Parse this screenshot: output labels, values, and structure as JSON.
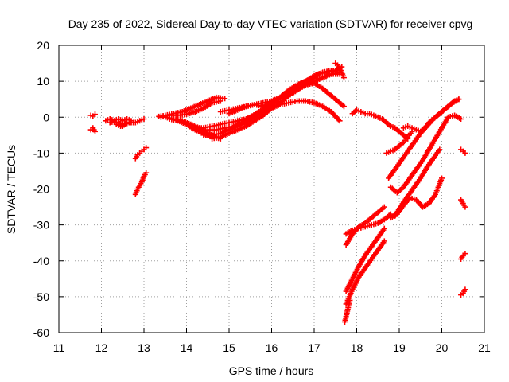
{
  "chart_data": {
    "type": "scatter",
    "title": "Day 235 of 2022, Sidereal Day-to-day VTEC variation (SDTVAR) for receiver cpvg",
    "xlabel": "GPS time / hours",
    "ylabel": "SDTVAR / TECUs",
    "xlim": [
      11,
      21
    ],
    "ylim": [
      -60,
      20
    ],
    "xticks": [
      "11",
      "12",
      "13",
      "14",
      "15",
      "16",
      "17",
      "18",
      "19",
      "20",
      "21"
    ],
    "yticks": [
      "-60",
      "-50",
      "-40",
      "-30",
      "-20",
      "-10",
      "0",
      "10",
      "20"
    ],
    "grid": true,
    "marker": "+",
    "color": "#ff0000",
    "series": [
      {
        "name": "s1",
        "x": [
          11.75,
          11.8,
          11.85
        ],
        "y": [
          0.5,
          0.3,
          0.8
        ]
      },
      {
        "name": "s2",
        "x": [
          11.75,
          11.8,
          11.85
        ],
        "y": [
          -3.5,
          -3,
          -4
        ]
      },
      {
        "name": "s3",
        "x": [
          12.1,
          12.2,
          12.3,
          12.4,
          12.5,
          12.6,
          12.7
        ],
        "y": [
          -1,
          -0.5,
          -1,
          -0.5,
          -1,
          -0.5,
          -1
        ]
      },
      {
        "name": "s4",
        "x": [
          12.2,
          12.3,
          12.4,
          12.5,
          12.6,
          12.7,
          12.8,
          12.9,
          13.0
        ],
        "y": [
          -1.5,
          -1.2,
          -1.5,
          -2.5,
          -1.5,
          -1.5,
          -1.5,
          -1,
          -0.5
        ]
      },
      {
        "name": "s5",
        "x": [
          12.35,
          12.45,
          12.55,
          12.65,
          12.75
        ],
        "y": [
          -2,
          -2.5,
          -2,
          -1.5,
          -1.5
        ]
      },
      {
        "name": "s6",
        "x": [
          12.8,
          12.85,
          12.9,
          12.95,
          13.0,
          13.05
        ],
        "y": [
          -11.5,
          -10.5,
          -10,
          -9.5,
          -9,
          -8.5
        ]
      },
      {
        "name": "s7",
        "x": [
          12.8,
          12.85,
          12.9,
          12.95,
          13.0,
          13.05
        ],
        "y": [
          -21.5,
          -20,
          -19,
          -18,
          -16.5,
          -15.5
        ]
      },
      {
        "name": "s8",
        "x": [
          13.35,
          13.5,
          13.7,
          13.9,
          14.1,
          14.3,
          14.5,
          14.7,
          14.9
        ],
        "y": [
          0.2,
          0.5,
          1,
          1.5,
          2.5,
          3.5,
          4.5,
          5.5,
          5.2
        ]
      },
      {
        "name": "s9",
        "x": [
          13.4,
          13.6,
          13.8,
          14.0,
          14.2,
          14.4,
          14.6,
          14.8
        ],
        "y": [
          0,
          0.5,
          0.5,
          0.8,
          1.5,
          2.5,
          4,
          4.5
        ]
      },
      {
        "name": "s10",
        "x": [
          13.5,
          13.7,
          13.9,
          14.1,
          14.3,
          14.5,
          14.7
        ],
        "y": [
          0,
          -0.5,
          -1,
          -2,
          -3,
          -4.5,
          -5.5
        ]
      },
      {
        "name": "s11",
        "x": [
          13.6,
          13.8,
          14.0,
          14.2,
          14.4,
          14.6,
          14.8
        ],
        "y": [
          -0.5,
          -1,
          -2,
          -3.5,
          -4.5,
          -5.5,
          -6
        ]
      },
      {
        "name": "s12",
        "x": [
          14.3,
          14.5,
          14.7,
          14.9,
          15.1,
          15.3,
          15.5,
          15.7,
          15.9,
          16.1,
          16.3,
          16.5,
          16.7,
          16.9,
          17.1,
          17.3,
          17.5,
          17.65
        ],
        "y": [
          -4,
          -3.5,
          -3.5,
          -3,
          -2.5,
          -1.5,
          0,
          1.5,
          3,
          4.5,
          6.5,
          8,
          9.5,
          10.5,
          12,
          12.5,
          13,
          14
        ]
      },
      {
        "name": "s13",
        "x": [
          14.4,
          14.6,
          14.8,
          15.0,
          15.2,
          15.4,
          15.6,
          15.8,
          16.0,
          16.2,
          16.4,
          16.6,
          16.8,
          17.0,
          17.2,
          17.4,
          17.6
        ],
        "y": [
          -5,
          -5,
          -4.5,
          -3.5,
          -2.5,
          -1.5,
          0,
          1.5,
          3.5,
          5.5,
          7,
          8.5,
          9.5,
          10,
          11,
          12,
          12.5
        ]
      },
      {
        "name": "s14",
        "x": [
          14.6,
          14.8,
          15.0,
          15.2,
          15.4,
          15.6,
          15.8,
          16.0,
          16.2,
          16.4,
          16.6,
          16.8,
          17.0,
          17.2,
          17.4,
          17.6
        ],
        "y": [
          -6,
          -5.5,
          -4.5,
          -3.5,
          -2.5,
          -1,
          0.5,
          2.5,
          4,
          6,
          7.5,
          9,
          10,
          11,
          12,
          12
        ]
      },
      {
        "name": "s15",
        "x": [
          14.2,
          14.4,
          14.6,
          14.8,
          15.0,
          15.2,
          15.4,
          15.6,
          15.8,
          16.0,
          16.2,
          16.4,
          16.6,
          16.8,
          17.0,
          17.2,
          17.4,
          17.6
        ],
        "y": [
          -3,
          -3,
          -2.5,
          -2,
          -1.5,
          -1,
          -0.5,
          0.5,
          1.5,
          2.5,
          3.5,
          4,
          4.5,
          4.5,
          4,
          3,
          1.5,
          -1
        ]
      },
      {
        "name": "s16",
        "x": [
          14.8,
          15.0,
          15.2,
          15.4,
          15.6,
          15.8,
          16.0,
          16.2,
          16.4,
          16.6,
          16.8,
          17.0,
          17.2,
          17.4,
          17.6,
          17.7
        ],
        "y": [
          1.5,
          2,
          2.5,
          3,
          3.5,
          4,
          4.5,
          5.5,
          7,
          8,
          9,
          9.5,
          8,
          6,
          4,
          3
        ]
      },
      {
        "name": "s17",
        "x": [
          15.0,
          15.2,
          15.4,
          15.6,
          15.8,
          16.0,
          16.2,
          16.4,
          16.6,
          16.8,
          17.0,
          17.2,
          17.4,
          17.6
        ],
        "y": [
          1,
          2,
          3,
          3.5,
          3,
          4,
          5.5,
          7.5,
          9,
          10,
          11.5,
          12.5,
          13,
          13
        ]
      },
      {
        "name": "s18",
        "x": [
          17.5,
          17.55,
          17.6,
          17.65,
          17.7
        ],
        "y": [
          15,
          14.5,
          13.5,
          12.5,
          11
        ]
      },
      {
        "name": "s19",
        "x": [
          17.9,
          18.0,
          18.1,
          18.2,
          18.3,
          18.4,
          18.5,
          18.6,
          18.7,
          18.8,
          18.9,
          19.0,
          19.1,
          19.2
        ],
        "y": [
          1,
          2,
          1.5,
          1,
          1,
          0.5,
          0,
          -0.5,
          -1.5,
          -2.5,
          -3,
          -4,
          -5,
          -6
        ]
      },
      {
        "name": "s20",
        "x": [
          18.7,
          18.8,
          18.9,
          19.0,
          19.1,
          19.2,
          19.3
        ],
        "y": [
          -10,
          -9.5,
          -9,
          -8,
          -7,
          -5.5,
          -4
        ]
      },
      {
        "name": "s21",
        "x": [
          19.1,
          19.2,
          19.3,
          19.4,
          19.5,
          19.6,
          19.7,
          19.8,
          19.9,
          20.0,
          20.1,
          20.2,
          20.3,
          20.4
        ],
        "y": [
          -3,
          -2.5,
          -3,
          -3.5,
          -4,
          -3,
          -1.5,
          -0.5,
          0.5,
          1.5,
          2.5,
          3.5,
          4.5,
          5
        ]
      },
      {
        "name": "s22",
        "x": [
          18.75,
          18.9,
          19.05,
          19.2,
          19.35,
          19.5,
          19.65,
          19.8,
          19.95,
          20.1,
          20.25,
          20.4
        ],
        "y": [
          -17,
          -14.5,
          -12,
          -9.5,
          -7,
          -4.5,
          -2.5,
          -0.5,
          1,
          2.5,
          4,
          5
        ]
      },
      {
        "name": "s23",
        "x": [
          18.8,
          18.95,
          19.1,
          19.25,
          19.4,
          19.55,
          19.7,
          19.85,
          20.0,
          20.15,
          20.3,
          20.45
        ],
        "y": [
          -19.5,
          -21,
          -19.5,
          -17,
          -14.5,
          -12,
          -9,
          -6,
          -3,
          0,
          0.5,
          -0.5
        ]
      },
      {
        "name": "s24",
        "x": [
          18.8,
          18.95,
          19.1,
          19.25,
          19.4,
          19.55,
          19.7,
          19.85,
          20.0
        ],
        "y": [
          -28,
          -27,
          -24.5,
          -22.5,
          -23,
          -25,
          -24,
          -21.5,
          -17
        ]
      },
      {
        "name": "s25",
        "x": [
          18.9,
          19.05,
          19.2,
          19.35,
          19.5,
          19.65,
          19.8,
          19.95
        ],
        "y": [
          -27.5,
          -24.5,
          -22,
          -19.5,
          -17,
          -14,
          -11.5,
          -9
        ]
      },
      {
        "name": "s26",
        "x": [
          17.75,
          17.9,
          18.05,
          18.2,
          18.35,
          18.5,
          18.65,
          18.8
        ],
        "y": [
          -32.5,
          -31.5,
          -31,
          -30.5,
          -30,
          -29.5,
          -28.5,
          -27
        ]
      },
      {
        "name": "s27",
        "x": [
          17.75,
          17.9,
          18.05,
          18.2,
          18.35,
          18.5,
          18.65
        ],
        "y": [
          -35.5,
          -32.5,
          -30.5,
          -29.5,
          -28,
          -26.5,
          -25
        ]
      },
      {
        "name": "s28",
        "x": [
          17.75,
          17.9,
          18.05,
          18.2,
          18.35,
          18.5,
          18.65
        ],
        "y": [
          -48.5,
          -45,
          -41.5,
          -38.5,
          -36,
          -33.5,
          -31
        ]
      },
      {
        "name": "s29",
        "x": [
          17.75,
          17.9,
          18.05,
          18.2,
          18.35,
          18.5,
          18.65
        ],
        "y": [
          -52,
          -48,
          -44.5,
          -42,
          -39.5,
          -37,
          -34.5
        ]
      },
      {
        "name": "s30",
        "x": [
          17.72,
          17.76,
          17.8,
          17.84
        ],
        "y": [
          -57,
          -55,
          -53,
          -51
        ]
      },
      {
        "name": "s31",
        "x": [
          20.45,
          20.5,
          20.55
        ],
        "y": [
          -9,
          -9.5,
          -10
        ]
      },
      {
        "name": "s32",
        "x": [
          20.45,
          20.5,
          20.55
        ],
        "y": [
          -23,
          -24,
          -25
        ]
      },
      {
        "name": "s33",
        "x": [
          20.45,
          20.5,
          20.55
        ],
        "y": [
          -39.5,
          -38.5,
          -38
        ]
      },
      {
        "name": "s34",
        "x": [
          20.45,
          20.5,
          20.55
        ],
        "y": [
          -49.5,
          -49,
          -48
        ]
      }
    ]
  }
}
